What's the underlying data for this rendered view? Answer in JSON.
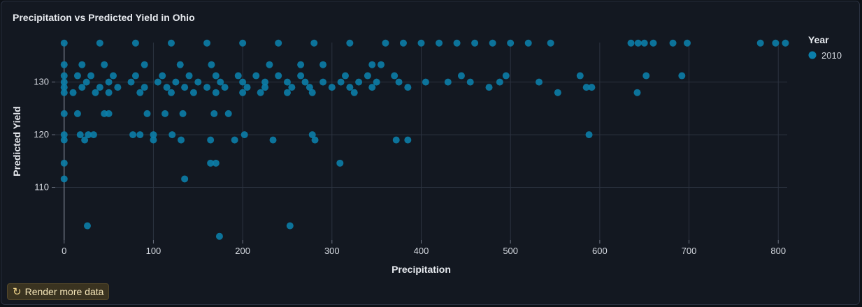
{
  "chart_title": "Precipitation vs Predicted Yield in Ohio",
  "render_button": {
    "label": "Render more data",
    "icon": "refresh-icon"
  },
  "colors": {
    "point": "#0b7fab",
    "background": "#131821",
    "grid": "#2c3340",
    "text": "#e6e9ee"
  },
  "chart_data": {
    "type": "scatter",
    "title": "Precipitation vs Predicted Yield in Ohio",
    "xlabel": "Precipitation",
    "ylabel": "Predicted Yield",
    "xlim": [
      -10,
      810
    ],
    "ylim": [
      100,
      137.5
    ],
    "x_ticks": [
      0,
      100,
      200,
      300,
      400,
      500,
      600,
      700,
      800
    ],
    "y_ticks": [
      110,
      120,
      130
    ],
    "x_tick_labels": [
      "0",
      "100",
      "200",
      "300",
      "400",
      "500",
      "600",
      "700",
      "800"
    ],
    "y_tick_labels": [
      "110",
      "120",
      "130"
    ],
    "grid": true,
    "legend": {
      "title": "Year",
      "position": "top-right",
      "entries": [
        "2010"
      ]
    },
    "series": [
      {
        "name": "2010",
        "points": [
          [
            0,
            137.4
          ],
          [
            40,
            137.4
          ],
          [
            80,
            137.4
          ],
          [
            120,
            137.4
          ],
          [
            160,
            137.4
          ],
          [
            200,
            137.4
          ],
          [
            240,
            137.4
          ],
          [
            280,
            137.4
          ],
          [
            320,
            137.4
          ],
          [
            360,
            137.4
          ],
          [
            380,
            137.4
          ],
          [
            400,
            137.4
          ],
          [
            420,
            137.4
          ],
          [
            440,
            137.4
          ],
          [
            460,
            137.4
          ],
          [
            480,
            137.4
          ],
          [
            500,
            137.4
          ],
          [
            520,
            137.4
          ],
          [
            545,
            137.4
          ],
          [
            635,
            137.4
          ],
          [
            643,
            137.4
          ],
          [
            650,
            137.4
          ],
          [
            660,
            137.4
          ],
          [
            682,
            137.4
          ],
          [
            698,
            137.4
          ],
          [
            780,
            137.4
          ],
          [
            797,
            137.4
          ],
          [
            808,
            137.4
          ],
          [
            0,
            133.3
          ],
          [
            20,
            133.3
          ],
          [
            45,
            133.3
          ],
          [
            90,
            133.3
          ],
          [
            130,
            133.3
          ],
          [
            165,
            133.3
          ],
          [
            230,
            133.3
          ],
          [
            265,
            133.3
          ],
          [
            290,
            133.3
          ],
          [
            345,
            133.3
          ],
          [
            355,
            133.3
          ],
          [
            0,
            131.2
          ],
          [
            15,
            131.2
          ],
          [
            30,
            131.2
          ],
          [
            55,
            131.2
          ],
          [
            80,
            131.2
          ],
          [
            110,
            131.2
          ],
          [
            140,
            131.2
          ],
          [
            170,
            131.2
          ],
          [
            195,
            131.2
          ],
          [
            215,
            131.2
          ],
          [
            240,
            131.2
          ],
          [
            265,
            131.2
          ],
          [
            315,
            131.2
          ],
          [
            340,
            131.2
          ],
          [
            370,
            131.2
          ],
          [
            445,
            131.2
          ],
          [
            495,
            131.2
          ],
          [
            578,
            131.2
          ],
          [
            652,
            131.2
          ],
          [
            692,
            131.2
          ],
          [
            0,
            130
          ],
          [
            25,
            130
          ],
          [
            50,
            130
          ],
          [
            75,
            130
          ],
          [
            105,
            130
          ],
          [
            125,
            130
          ],
          [
            150,
            130
          ],
          [
            175,
            130
          ],
          [
            200,
            130
          ],
          [
            225,
            130
          ],
          [
            250,
            130
          ],
          [
            270,
            130
          ],
          [
            290,
            130
          ],
          [
            310,
            130
          ],
          [
            330,
            130
          ],
          [
            350,
            130
          ],
          [
            375,
            130
          ],
          [
            405,
            130
          ],
          [
            430,
            130
          ],
          [
            455,
            130
          ],
          [
            488,
            130
          ],
          [
            532,
            130
          ],
          [
            0,
            129
          ],
          [
            20,
            129
          ],
          [
            40,
            129
          ],
          [
            60,
            129
          ],
          [
            90,
            129
          ],
          [
            115,
            129
          ],
          [
            135,
            129
          ],
          [
            160,
            129
          ],
          [
            180,
            129
          ],
          [
            205,
            129
          ],
          [
            225,
            129
          ],
          [
            255,
            129
          ],
          [
            275,
            129
          ],
          [
            300,
            129
          ],
          [
            320,
            129
          ],
          [
            345,
            129
          ],
          [
            385,
            129
          ],
          [
            476,
            129
          ],
          [
            585,
            129
          ],
          [
            591,
            129
          ],
          [
            0,
            128
          ],
          [
            10,
            128
          ],
          [
            35,
            128
          ],
          [
            50,
            128
          ],
          [
            85,
            128
          ],
          [
            120,
            128
          ],
          [
            145,
            128
          ],
          [
            170,
            128
          ],
          [
            200,
            128
          ],
          [
            220,
            128
          ],
          [
            250,
            128
          ],
          [
            278,
            128
          ],
          [
            325,
            128
          ],
          [
            553,
            128
          ],
          [
            642,
            128
          ],
          [
            0,
            124
          ],
          [
            15,
            124
          ],
          [
            45,
            124
          ],
          [
            50,
            124
          ],
          [
            93,
            124
          ],
          [
            113,
            124
          ],
          [
            133,
            124
          ],
          [
            168,
            124
          ],
          [
            184,
            124
          ],
          [
            0,
            120
          ],
          [
            18,
            120
          ],
          [
            27,
            120
          ],
          [
            33,
            120
          ],
          [
            77,
            120
          ],
          [
            85,
            120
          ],
          [
            100,
            120
          ],
          [
            121,
            120
          ],
          [
            202,
            120
          ],
          [
            278,
            120
          ],
          [
            588,
            120
          ],
          [
            0,
            119
          ],
          [
            23,
            119
          ],
          [
            100,
            119
          ],
          [
            131,
            119
          ],
          [
            164,
            119
          ],
          [
            191,
            119
          ],
          [
            234,
            119
          ],
          [
            281,
            119
          ],
          [
            372,
            119
          ],
          [
            385,
            119
          ],
          [
            0,
            114.6
          ],
          [
            164,
            114.6
          ],
          [
            170,
            114.6
          ],
          [
            309,
            114.6
          ],
          [
            0,
            111.6
          ],
          [
            135,
            111.6
          ],
          [
            26,
            102.7
          ],
          [
            253,
            102.7
          ],
          [
            174,
            100.7
          ]
        ]
      }
    ]
  }
}
